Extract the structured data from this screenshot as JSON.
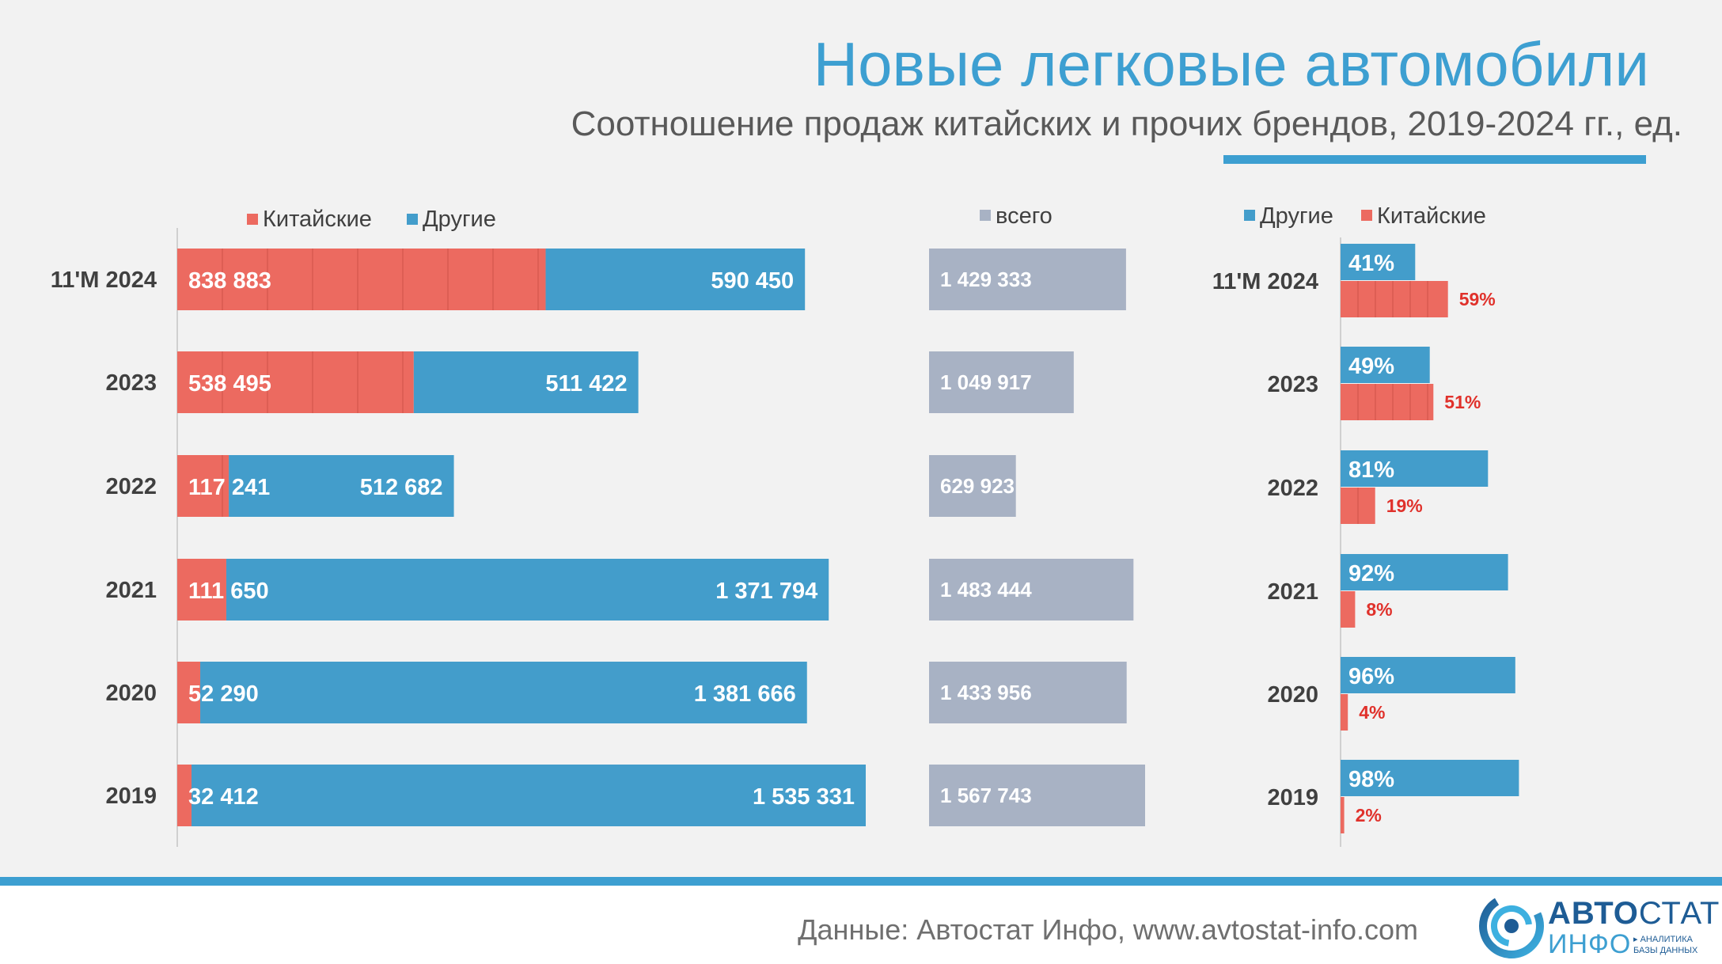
{
  "header": {
    "title": "Новые легковые автомобили",
    "subtitle": "Соотношение продаж китайских и прочих брендов, 2019-2024 гг., ед."
  },
  "footer": {
    "source": "Данные: Автостат Инфо, www.avtostat-info.com"
  },
  "logo": {
    "line1_bold": "АВТО",
    "line1_regular": "СТАТ",
    "line2": "ИНФО",
    "tagline_1": "▸ АНАЛИТИКА",
    "tagline_2": "БАЗЫ ДАННЫХ"
  },
  "colors": {
    "chinese": "#ec6a60",
    "other": "#439dcb",
    "total": "#a8b2c4",
    "accent": "#3d9fd1",
    "pct_label_red": "#e0312b"
  },
  "chart_data": [
    {
      "type": "bar",
      "stacked": true,
      "orientation": "horizontal",
      "categories": [
        "11'М 2024",
        "2023",
        "2022",
        "2021",
        "2020",
        "2019"
      ],
      "legend": [
        "Китайские",
        "Другие"
      ],
      "legend_position": "top",
      "series": [
        {
          "name": "Китайские",
          "values": [
            838883,
            538495,
            117241,
            111650,
            52290,
            32412
          ],
          "labels": [
            "838 883",
            "538 495",
            "117 241",
            "111 650",
            "52 290",
            "32 412"
          ]
        },
        {
          "name": "Другие",
          "values": [
            590450,
            511422,
            512682,
            1371794,
            1381666,
            1535331
          ],
          "labels": [
            "590 450",
            "511 422",
            "512 682",
            "1 371 794",
            "1 381 666",
            "1 535 331"
          ]
        }
      ]
    },
    {
      "type": "bar",
      "orientation": "horizontal",
      "categories": [
        "11'М 2024",
        "2023",
        "2022",
        "2021",
        "2020",
        "2019"
      ],
      "legend": [
        "всего"
      ],
      "legend_position": "top",
      "series": [
        {
          "name": "всего",
          "values": [
            1429333,
            1049917,
            629923,
            1483444,
            1433956,
            1567743
          ],
          "labels": [
            "1 429 333",
            "1 049 917",
            "629 923",
            "1 483 444",
            "1 433 956",
            "1 567 743"
          ]
        }
      ]
    },
    {
      "type": "bar",
      "orientation": "horizontal",
      "grouped": true,
      "unit": "%",
      "categories": [
        "11'М 2024",
        "2023",
        "2022",
        "2021",
        "2020",
        "2019"
      ],
      "legend": [
        "Другие",
        "Китайские"
      ],
      "legend_position": "top",
      "series": [
        {
          "name": "Другие",
          "values": [
            41,
            49,
            81,
            92,
            96,
            98
          ],
          "labels": [
            "41%",
            "49%",
            "81%",
            "92%",
            "96%",
            "98%"
          ]
        },
        {
          "name": "Китайские",
          "values": [
            59,
            51,
            19,
            8,
            4,
            2
          ],
          "labels": [
            "59%",
            "51%",
            "19%",
            "8%",
            "4%",
            "2%"
          ]
        }
      ]
    }
  ]
}
